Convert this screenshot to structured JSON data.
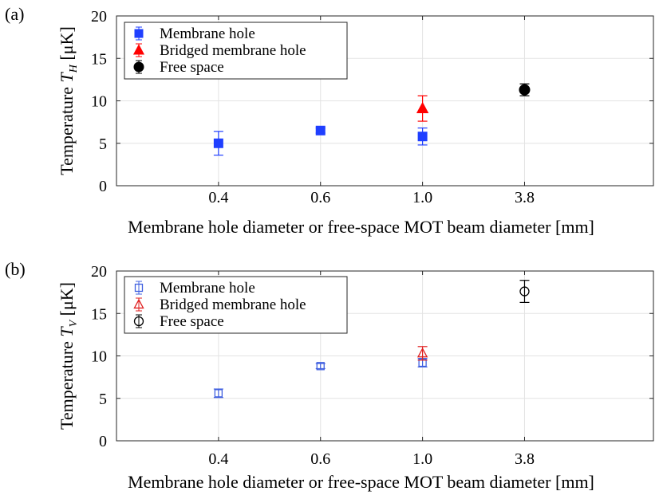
{
  "chart_data": [
    {
      "type": "scatter",
      "panel_label": "(a)",
      "xlabel": "Membrane hole diameter or free-space MOT beam diameter [mm]",
      "ylabel_prefix": "Temperature ",
      "ylabel_var": "T",
      "ylabel_sub": "H",
      "ylabel_suffix": " [μK]",
      "categories": [
        "0.4",
        "0.6",
        "1.0",
        "3.8"
      ],
      "ylim": [
        0,
        20
      ],
      "yticks": [
        "0",
        "5",
        "10",
        "15",
        "20"
      ],
      "grid": true,
      "legend_position": "top-left",
      "series": [
        {
          "name": "Membrane hole",
          "marker": "square",
          "filled": true,
          "color": "#1f3fff",
          "points": [
            {
              "x": "0.4",
              "y": 5.0,
              "err": 1.4
            },
            {
              "x": "0.6",
              "y": 6.5,
              "err": 0.3
            },
            {
              "x": "1.0",
              "y": 5.8,
              "err": 1.0
            }
          ]
        },
        {
          "name": "Bridged membrane hole",
          "marker": "triangle",
          "filled": true,
          "color": "#ff0000",
          "points": [
            {
              "x": "1.0",
              "y": 9.1,
              "err": 1.5
            }
          ]
        },
        {
          "name": "Free space",
          "marker": "circle",
          "filled": true,
          "color": "#000000",
          "points": [
            {
              "x": "3.8",
              "y": 11.3,
              "err": 0.7
            }
          ]
        }
      ]
    },
    {
      "type": "scatter",
      "panel_label": "(b)",
      "xlabel": "Membrane hole diameter or free-space MOT beam diameter [mm]",
      "ylabel_prefix": "Temperature ",
      "ylabel_var": "T",
      "ylabel_sub": "V",
      "ylabel_suffix": " [μK]",
      "categories": [
        "0.4",
        "0.6",
        "1.0",
        "3.8"
      ],
      "ylim": [
        0,
        20
      ],
      "yticks": [
        "0",
        "5",
        "10",
        "15",
        "20"
      ],
      "grid": true,
      "legend_position": "top-left",
      "series": [
        {
          "name": "Membrane hole",
          "marker": "square",
          "filled": false,
          "color": "#4060e0",
          "points": [
            {
              "x": "0.4",
              "y": 5.6,
              "err": 0.5
            },
            {
              "x": "0.6",
              "y": 8.8,
              "err": 0.3
            },
            {
              "x": "1.0",
              "y": 9.2,
              "err": 0.5
            }
          ]
        },
        {
          "name": "Bridged membrane hole",
          "marker": "triangle",
          "filled": false,
          "color": "#e02020",
          "points": [
            {
              "x": "1.0",
              "y": 10.3,
              "err": 0.8
            }
          ]
        },
        {
          "name": "Free space",
          "marker": "circle",
          "filled": false,
          "color": "#000000",
          "points": [
            {
              "x": "3.8",
              "y": 17.6,
              "err": 1.3
            }
          ]
        }
      ]
    }
  ]
}
